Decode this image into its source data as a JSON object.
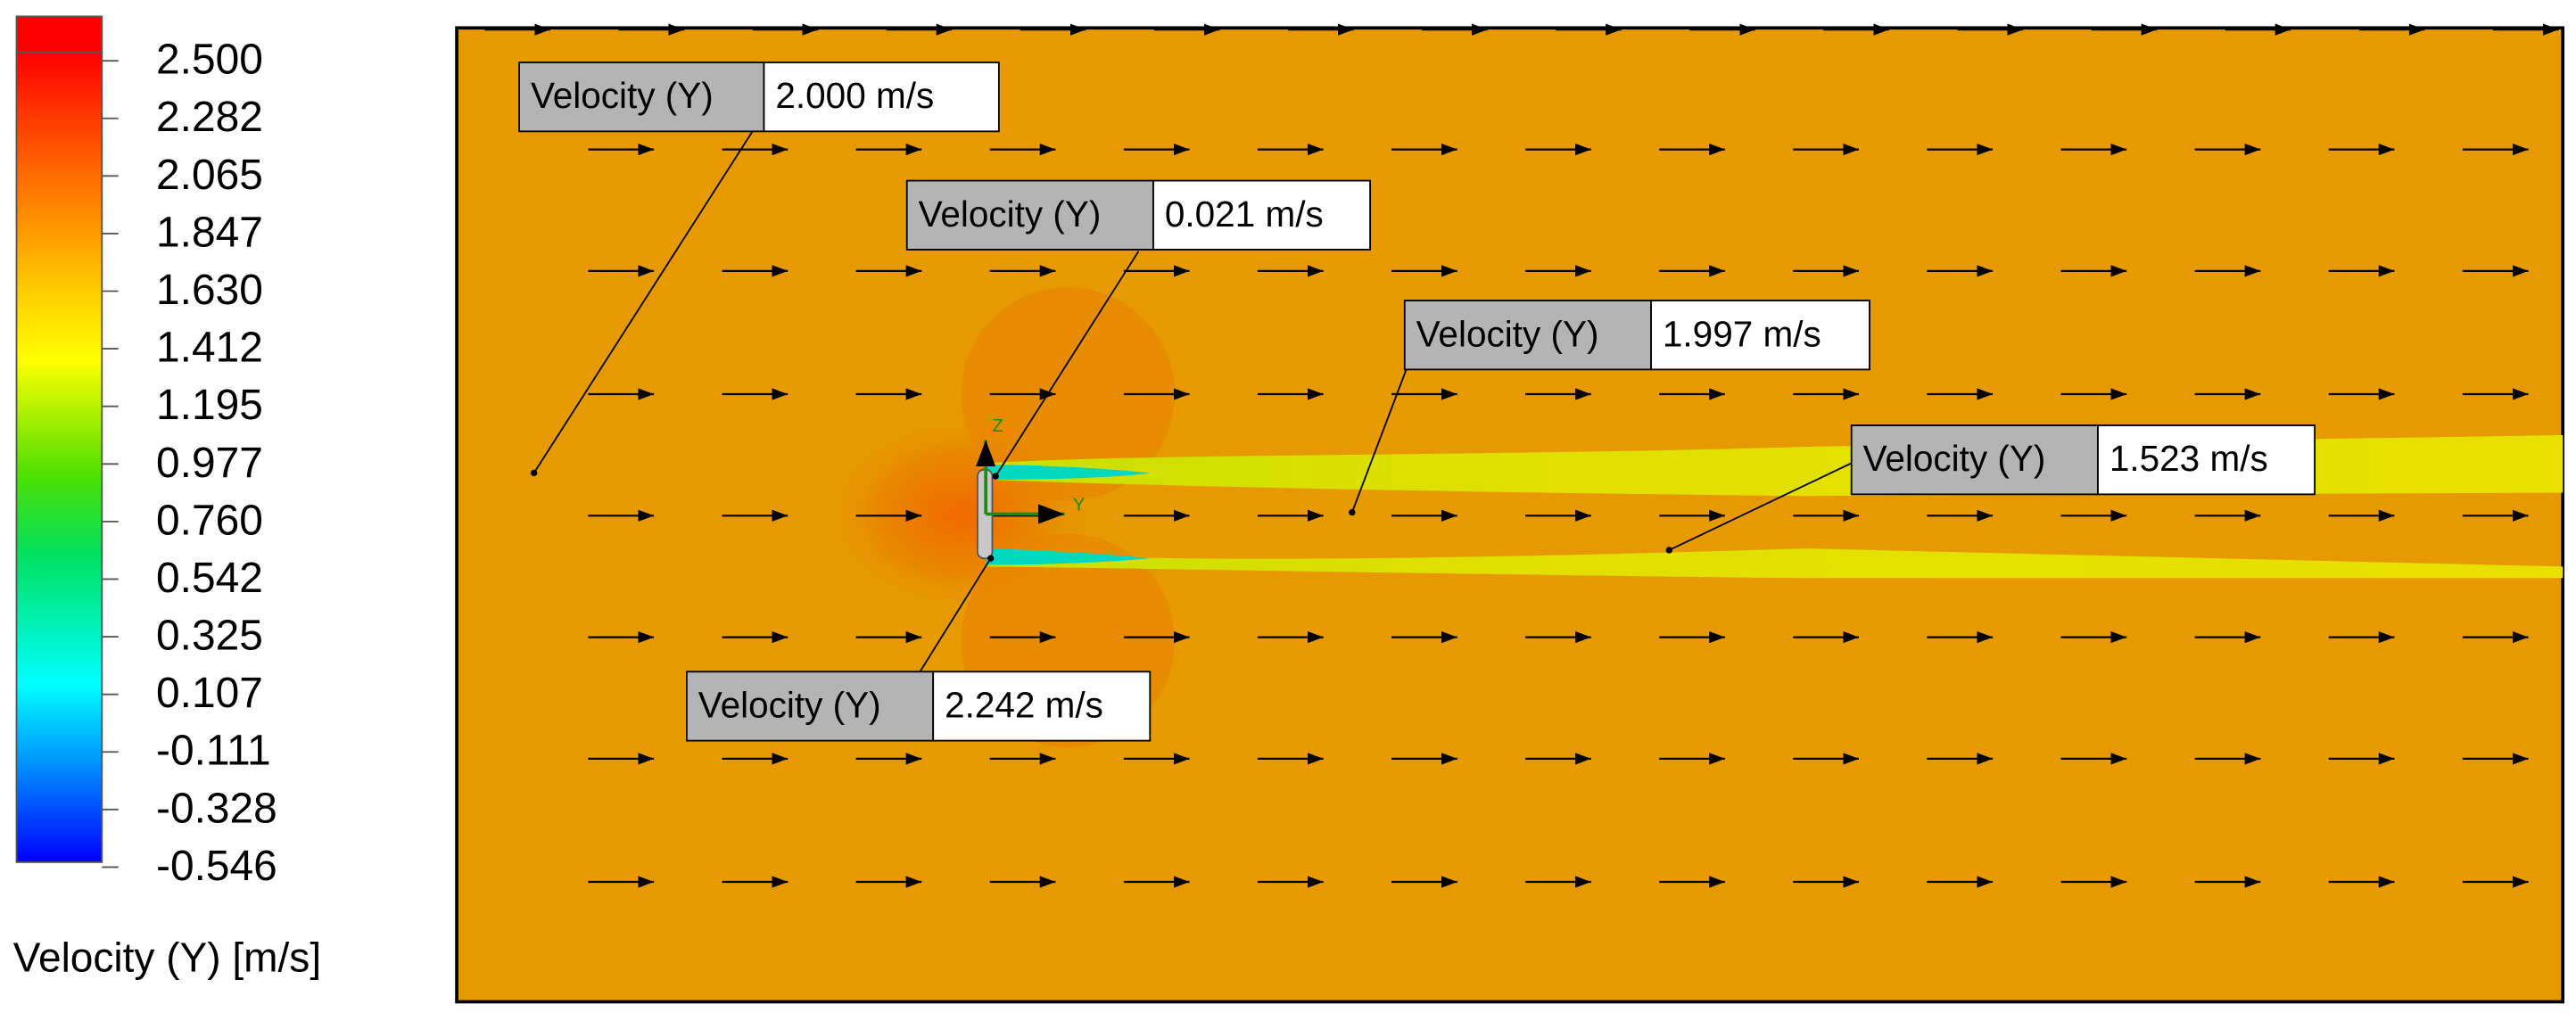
{
  "legend": {
    "title": "Velocity (Y) [m/s]",
    "ticks": [
      "2.500",
      "2.282",
      "2.065",
      "1.847",
      "1.630",
      "1.412",
      "1.195",
      "0.977",
      "0.760",
      "0.542",
      "0.325",
      "0.107",
      "-0.111",
      "-0.328",
      "-0.546"
    ]
  },
  "probes": [
    {
      "label": "Velocity (Y)",
      "value": "2.000 m/s"
    },
    {
      "label": "Velocity (Y)",
      "value": "0.021 m/s"
    },
    {
      "label": "Velocity (Y)",
      "value": "1.997 m/s"
    },
    {
      "label": "Velocity (Y)",
      "value": "1.523 m/s"
    },
    {
      "label": "Velocity (Y)",
      "value": "2.242 m/s"
    }
  ],
  "triad": {
    "z": "Z",
    "y": "Y"
  }
}
